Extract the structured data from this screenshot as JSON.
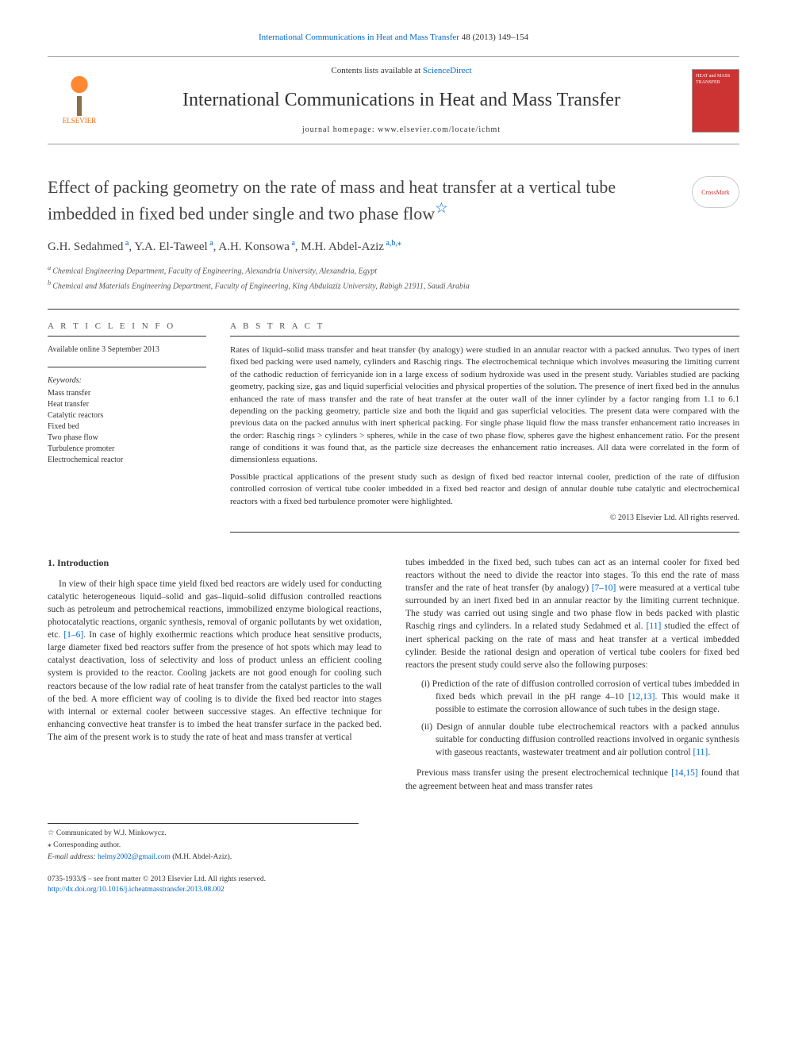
{
  "top_link": {
    "prefix_journal": "International Communications in Heat and Mass Transfer",
    "citation": " 48 (2013) 149–154"
  },
  "header": {
    "contents_prefix": "Contents lists available at ",
    "contents_link": "ScienceDirect",
    "journal_title": "International Communications in Heat and Mass Transfer",
    "homepage_label": "journal homepage: ",
    "homepage_url": "www.elsevier.com/locate/ichmt",
    "elsevier_label": "ELSEVIER",
    "cover_text": "HEAT and MASS TRANSFER"
  },
  "article": {
    "title": "Effect of packing geometry on the rate of mass and heat transfer at a vertical tube imbedded in fixed bed under single and two phase flow",
    "star": "☆",
    "crossmark": "CrossMark"
  },
  "authors": {
    "a1": {
      "name": "G.H. Sedahmed",
      "sup": " a"
    },
    "a2": {
      "name": "Y.A. El-Taweel",
      "sup": " a"
    },
    "a3": {
      "name": "A.H. Konsowa",
      "sup": " a"
    },
    "a4": {
      "name": "M.H. Abdel-Aziz",
      "sup": " a,b,",
      "corr": "⁎"
    }
  },
  "affiliations": {
    "a": "Chemical Engineering Department, Faculty of Engineering, Alexandria University, Alexandria, Egypt",
    "b": "Chemical and Materials Engineering Department, Faculty of Engineering, King Abdulaziz University, Rabigh 21911, Saudi Arabia",
    "sup_a": "a ",
    "sup_b": "b "
  },
  "info": {
    "header": "A R T I C L E   I N F O",
    "available": "Available online 3 September 2013",
    "kw_head": "Keywords:",
    "keywords": [
      "Mass transfer",
      "Heat transfer",
      "Catalytic reactors",
      "Fixed bed",
      "Two phase flow",
      "Turbulence promoter",
      "Electrochemical reactor"
    ]
  },
  "abstract": {
    "header": "A B S T R A C T",
    "p1": "Rates of liquid–solid mass transfer and heat transfer (by analogy) were studied in an annular reactor with a packed annulus. Two types of inert fixed bed packing were used namely, cylinders and Raschig rings. The electrochemical technique which involves measuring the limiting current of the cathodic reduction of ferricyanide ion in a large excess of sodium hydroxide was used in the present study. Variables studied are packing geometry, packing size, gas and liquid superficial velocities and physical properties of the solution. The presence of inert fixed bed in the annulus enhanced the rate of mass transfer and the rate of heat transfer at the outer wall of the inner cylinder by a factor ranging from 1.1 to 6.1 depending on the packing geometry, particle size and both the liquid and gas superficial velocities. The present data were compared with the previous data on the packed annulus with inert spherical packing. For single phase liquid flow the mass transfer enhancement ratio increases in the order: Raschig rings > cylinders > spheres, while in the case of two phase flow, spheres gave the highest enhancement ratio. For the present range of conditions it was found that, as the particle size decreases the enhancement ratio increases. All data were correlated in the form of dimensionless equations.",
    "p2": "Possible practical applications of the present study such as design of fixed bed reactor internal cooler, prediction of the rate of diffusion controlled corrosion of vertical tube cooler imbedded in a fixed bed reactor and design of annular double tube catalytic and electrochemical reactors with a fixed bed turbulence promoter were highlighted.",
    "copyright": "© 2013 Elsevier Ltd. All rights reserved."
  },
  "body": {
    "intro_head": "1. Introduction",
    "left_p1a": "In view of their high space time yield fixed bed reactors are widely used for conducting catalytic heterogeneous liquid–solid and gas–liquid–solid diffusion controlled reactions such as petroleum and petrochemical reactions, immobilized enzyme biological reactions, photocatalytic reactions, organic synthesis, removal of organic pollutants by wet oxidation, etc. ",
    "ref_1_6": "[1–6]",
    "left_p1b": ". In case of highly exothermic reactions which produce heat sensitive products, large diameter fixed bed reactors suffer from the presence of hot spots which may lead to catalyst deactivation, loss of selectivity and loss of product unless an efficient cooling system is provided to the reactor. Cooling jackets are not good enough for cooling such reactors because of the low radial rate of heat transfer from the catalyst particles to the wall of the bed. A more efficient way of cooling is to divide the fixed bed reactor into stages with internal or external cooler between successive stages. An effective technique for enhancing convective heat transfer is to imbed the heat transfer surface in the packed bed. The aim of the present work is to study the rate of heat and mass transfer at vertical",
    "right_p1a": "tubes imbedded in the fixed bed, such tubes can act as an internal cooler for fixed bed reactors without the need to divide the reactor into stages. To this end the rate of mass transfer and the rate of heat transfer (by analogy) ",
    "ref_7_10": "[7–10]",
    "right_p1b": " were measured at a vertical tube surrounded by an inert fixed bed in an annular reactor by the limiting current technique. The study was carried out using single and two phase flow in beds packed with plastic Raschig rings and cylinders. In a related study Sedahmed et al. ",
    "ref_11": "[11]",
    "right_p1c": " studied the effect of inert spherical packing on the rate of mass and heat transfer at a vertical imbedded cylinder. Beside the rational design and operation of vertical tube coolers for fixed bed reactors the present study could serve also the following purposes:",
    "li1a": "(i) Prediction of the rate of diffusion controlled corrosion of vertical tubes imbedded in fixed beds which prevail in the pH range 4–10 ",
    "ref_12_13": "[12,13]",
    "li1b": ". This would make it possible to estimate the corrosion allowance of such tubes in the design stage.",
    "li2a": "(ii) Design of annular double tube electrochemical reactors with a packed annulus suitable for conducting diffusion controlled reactions involved in organic synthesis with gaseous reactants, wastewater treatment and air pollution control ",
    "ref_11b": "[11]",
    "li2b": ".",
    "right_p2a": "Previous mass transfer using the present electrochemical technique ",
    "ref_14_15": "[14,15]",
    "right_p2b": " found that the agreement between heat and mass transfer rates"
  },
  "footnotes": {
    "communicated": "☆  Communicated by W.J. Minkowycz.",
    "corresponding": "⁎  Corresponding author.",
    "email_label": "E-mail address: ",
    "email": "helmy2002@gmail.com",
    "email_who": " (M.H. Abdel-Aziz)."
  },
  "bottom": {
    "issn": "0735-1933/$ – see front matter © 2013 Elsevier Ltd. All rights reserved.",
    "doi": "http://dx.doi.org/10.1016/j.icheatmasstransfer.2013.08.002"
  }
}
